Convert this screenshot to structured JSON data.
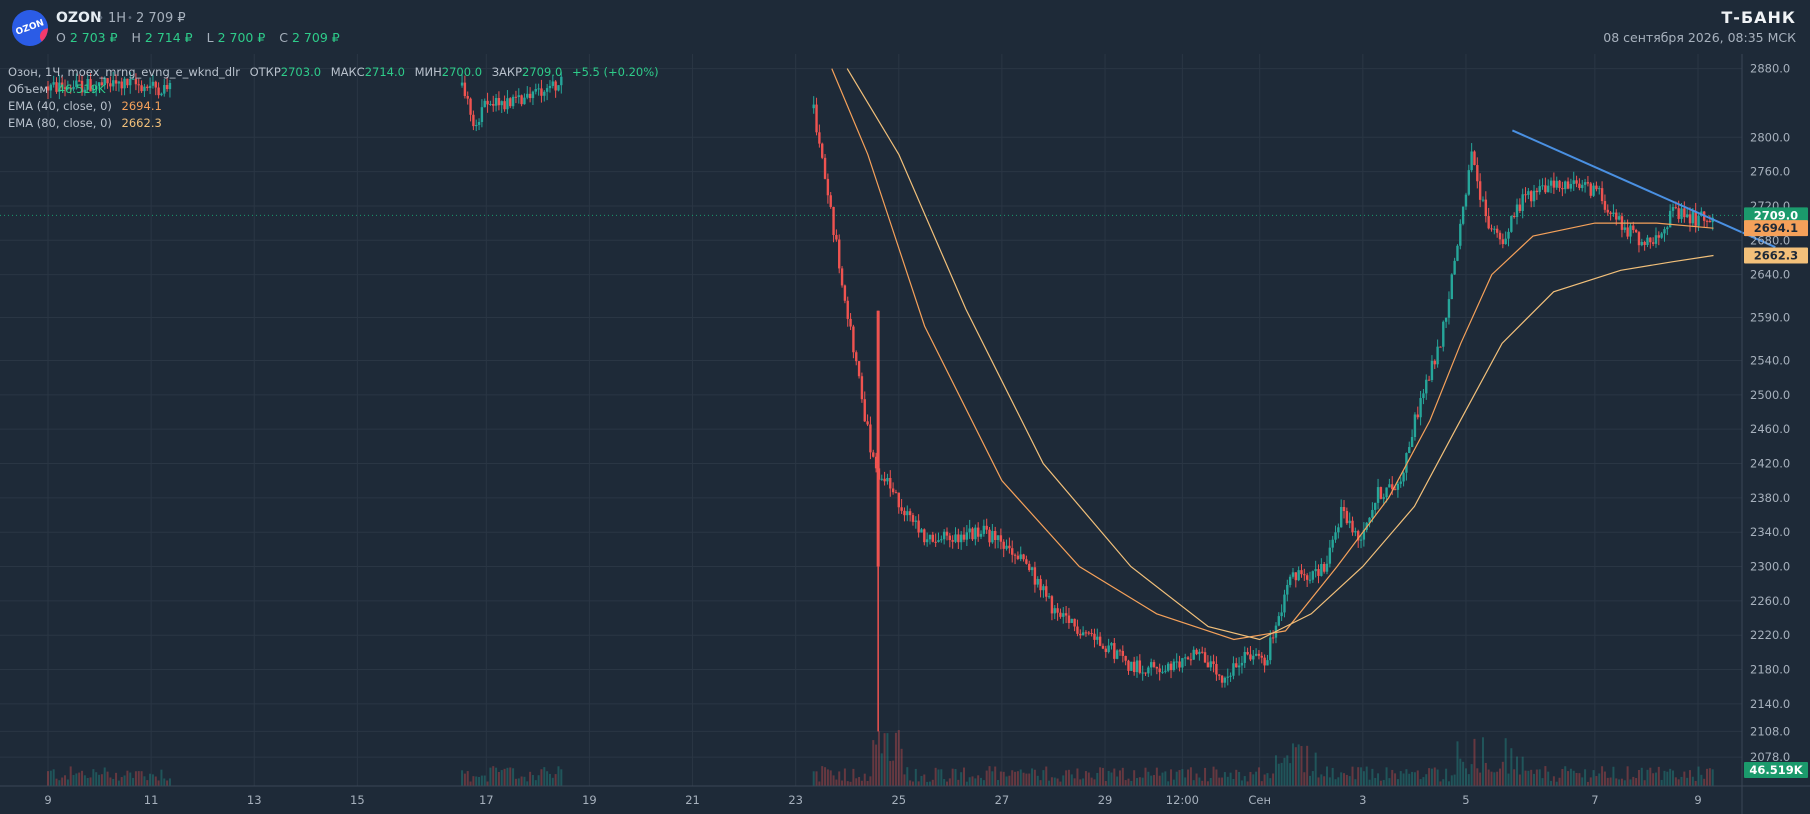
{
  "header": {
    "ticker": "OZON",
    "timeframe": "1H",
    "last_price": "2 709 ₽",
    "ohlc": [
      {
        "key": "O",
        "value": "2 703 ₽"
      },
      {
        "key": "H",
        "value": "2 714 ₽"
      },
      {
        "key": "L",
        "value": "2 700 ₽"
      },
      {
        "key": "C",
        "value": "2 709 ₽"
      }
    ],
    "brand": "Т-БАНК",
    "datetime": "08 сентября 2026, 08:35 МСК",
    "logo_text": "OZON"
  },
  "legend": {
    "series_line": {
      "name": "Озон, 1Ч, moex_mrng_evng_e_wknd_dlr",
      "open_label": "ОТКР",
      "open": "2703.0",
      "high_label": "МАКС",
      "high": "2714.0",
      "low_label": "МИН",
      "low": "2700.0",
      "close_label": "ЗАКР",
      "close": "2709.0",
      "change": "+5.5 (+0.20%)"
    },
    "volume": {
      "label": "Объем",
      "value": "46.519K"
    },
    "ema40": {
      "label": "EMA (40, close, 0)",
      "value": "2694.1"
    },
    "ema80": {
      "label": "EMA (80, close, 0)",
      "value": "2662.3"
    }
  },
  "chart_data": {
    "type": "candlestick",
    "y_axis": {
      "min": 2070,
      "max": 2890,
      "ticks": [
        2880.0,
        2800.0,
        2760.0,
        2720.0,
        2680.0,
        2640.0,
        2590.0,
        2540.0,
        2500.0,
        2460.0,
        2420.0,
        2380.0,
        2340.0,
        2300.0,
        2260.0,
        2220.0,
        2180.0,
        2140.0,
        2108.0,
        2078.0
      ],
      "tick_labels": [
        "2880.0",
        "2800.0",
        "2760.0",
        "2720.0",
        "2680.0",
        "2640.0",
        "2590.0",
        "2540.0",
        "2500.0",
        "2460.0",
        "2420.0",
        "2380.0",
        "2340.0",
        "2300.0",
        "2260.0",
        "2220.0",
        "2180.0",
        "2140.0",
        "2108.0",
        "2078.0"
      ]
    },
    "x_axis": {
      "ticks": [
        {
          "label": "9",
          "t": 0
        },
        {
          "label": "11",
          "t": 2
        },
        {
          "label": "13",
          "t": 4
        },
        {
          "label": "15",
          "t": 6
        },
        {
          "label": "17",
          "t": 8.5
        },
        {
          "label": "19",
          "t": 10.5
        },
        {
          "label": "21",
          "t": 12.5
        },
        {
          "label": "23",
          "t": 14.5
        },
        {
          "label": "25",
          "t": 16.5
        },
        {
          "label": "27",
          "t": 18.5
        },
        {
          "label": "29",
          "t": 20.5
        },
        {
          "label": "12:00",
          "t": 22
        },
        {
          "label": "Сен",
          "t": 23.5
        },
        {
          "label": "3",
          "t": 25.5
        },
        {
          "label": "5",
          "t": 27.5
        },
        {
          "label": "7",
          "t": 30
        },
        {
          "label": "9",
          "t": 32
        }
      ],
      "t_max": 33
    },
    "price_path": [
      [
        0,
        2858
      ],
      [
        1.6,
        2862
      ],
      [
        2.4,
        2856
      ],
      [
        8.0,
        2868
      ],
      [
        8.3,
        2810
      ],
      [
        8.5,
        2840
      ],
      [
        9.1,
        2842
      ],
      [
        9.5,
        2855
      ],
      [
        10.0,
        2866
      ],
      [
        14.8,
        2850
      ],
      [
        16.0,
        2420
      ],
      [
        17.0,
        2330
      ],
      [
        18.2,
        2340
      ],
      [
        19.0,
        2300
      ],
      [
        19.6,
        2240
      ],
      [
        20.4,
        2215
      ],
      [
        21.0,
        2185
      ],
      [
        21.8,
        2180
      ],
      [
        22.3,
        2205
      ],
      [
        22.8,
        2160
      ],
      [
        23.2,
        2200
      ],
      [
        23.6,
        2190
      ],
      [
        24.1,
        2285
      ],
      [
        24.8,
        2300
      ],
      [
        25.1,
        2370
      ],
      [
        25.4,
        2330
      ],
      [
        25.8,
        2385
      ],
      [
        26.2,
        2395
      ],
      [
        26.6,
        2490
      ],
      [
        27.0,
        2560
      ],
      [
        27.3,
        2660
      ],
      [
        27.6,
        2780
      ],
      [
        27.9,
        2700
      ],
      [
        28.2,
        2680
      ],
      [
        28.6,
        2730
      ],
      [
        29.2,
        2745
      ],
      [
        30.0,
        2740
      ],
      [
        30.5,
        2700
      ],
      [
        31.0,
        2675
      ],
      [
        31.5,
        2710
      ],
      [
        32.0,
        2705
      ],
      [
        32.3,
        2709
      ]
    ],
    "ema40_path": [
      [
        15.2,
        2880
      ],
      [
        15.9,
        2780
      ],
      [
        17.0,
        2580
      ],
      [
        18.5,
        2400
      ],
      [
        20.0,
        2300
      ],
      [
        21.5,
        2245
      ],
      [
        23.0,
        2215
      ],
      [
        24.0,
        2225
      ],
      [
        25.0,
        2300
      ],
      [
        26.0,
        2380
      ],
      [
        26.8,
        2470
      ],
      [
        27.4,
        2560
      ],
      [
        28.0,
        2640
      ],
      [
        28.8,
        2685
      ],
      [
        30.0,
        2700
      ],
      [
        31.2,
        2700
      ],
      [
        32.3,
        2694.1
      ]
    ],
    "ema80_path": [
      [
        15.5,
        2880
      ],
      [
        16.5,
        2780
      ],
      [
        17.8,
        2600
      ],
      [
        19.3,
        2420
      ],
      [
        21.0,
        2300
      ],
      [
        22.5,
        2230
      ],
      [
        23.5,
        2215
      ],
      [
        24.5,
        2245
      ],
      [
        25.5,
        2300
      ],
      [
        26.5,
        2370
      ],
      [
        27.3,
        2460
      ],
      [
        28.2,
        2560
      ],
      [
        29.2,
        2620
      ],
      [
        30.5,
        2645
      ],
      [
        31.5,
        2655
      ],
      [
        32.3,
        2662.3
      ]
    ],
    "trendline": {
      "from": [
        28.4,
        2808
      ],
      "to": [
        33.5,
        2672
      ]
    },
    "price_labels": [
      {
        "value": 2709.0,
        "text": "2709.0",
        "color": "#1b9a6c"
      },
      {
        "value": 2694.1,
        "text": "2694.1",
        "color": "#f5a15a"
      },
      {
        "value": 2662.3,
        "text": "2662.3",
        "color": "#f2c07a"
      }
    ],
    "volume_label": {
      "text": "46.519K",
      "color": "#1b9a6c"
    },
    "colors": {
      "up": "#26a69a",
      "down": "#ef5350",
      "ema40": "#f5a15a",
      "ema80": "#f2c07a",
      "trendline": "#4a90e2",
      "grid": "#2a3644"
    }
  }
}
